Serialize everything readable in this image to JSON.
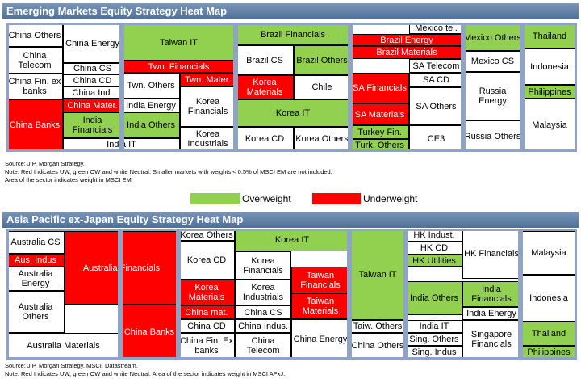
{
  "em": {
    "title": "Emerging Markets Equity Strategy Heat Map",
    "notes": [
      "Source: J.P. Morgan Strategy.",
      "Note: Red Indicates UW, green OW and white  Neutral. Smaller markets with weights < 0.5% of MSCI EM are not included.",
      "Area of the sector indicates weight in MSCI EM."
    ]
  },
  "legend": {
    "overweight": "Overweight",
    "underweight": "Underweight"
  },
  "ap": {
    "title": "Asia Pacific ex-Japan Equity Strategy Heat Map",
    "notes": [
      "Source: J.P. Morgan Strategy, MSCI, Datastream.",
      "Note: Red Indicates UW, green OW and white Neutral. Area of the sector indicates weight in MSCI APxJ."
    ]
  },
  "colors": {
    "overweight": "#92d050",
    "underweight": "#ff0000",
    "neutral": "#ffffff",
    "banner": "#5a7aa3",
    "frame": "#8fa4c4"
  },
  "chart_data": [
    {
      "type": "heatmap",
      "title": "Emerging Markets Equity Strategy Heat Map",
      "legend": [
        "Overweight",
        "Underweight"
      ],
      "cells": [
        {
          "label": "China Others",
          "rating": "neutral"
        },
        {
          "label": "China Telecom",
          "rating": "neutral"
        },
        {
          "label": "China Fin. ex banks",
          "rating": "neutral"
        },
        {
          "label": "China Banks",
          "rating": "underweight"
        },
        {
          "label": "China Energy",
          "rating": "neutral"
        },
        {
          "label": "China CS",
          "rating": "neutral"
        },
        {
          "label": "China CD",
          "rating": "neutral"
        },
        {
          "label": "China Ind.",
          "rating": "neutral"
        },
        {
          "label": "China Mater.",
          "rating": "underweight"
        },
        {
          "label": "India Financials",
          "rating": "overweight"
        },
        {
          "label": "India IT",
          "rating": "neutral"
        },
        {
          "label": "Taiwan IT",
          "rating": "overweight"
        },
        {
          "label": "Twn. Financials",
          "rating": "underweight"
        },
        {
          "label": "Twn. Others",
          "rating": "neutral"
        },
        {
          "label": "Twn. Mater.",
          "rating": "underweight"
        },
        {
          "label": "India Energy",
          "rating": "neutral"
        },
        {
          "label": "India Others",
          "rating": "overweight"
        },
        {
          "label": "Korea Financials",
          "rating": "neutral"
        },
        {
          "label": "Korea Industrials",
          "rating": "neutral"
        },
        {
          "label": "Brazil Financials",
          "rating": "overweight"
        },
        {
          "label": "Brazil CS",
          "rating": "neutral"
        },
        {
          "label": "Brazil Others",
          "rating": "overweight"
        },
        {
          "label": "Korea Materials",
          "rating": "underweight"
        },
        {
          "label": "Chile",
          "rating": "neutral"
        },
        {
          "label": "Korea IT",
          "rating": "overweight"
        },
        {
          "label": "Korea CD",
          "rating": "neutral"
        },
        {
          "label": "Korea Others",
          "rating": "neutral"
        },
        {
          "label": "Mexico tel.",
          "rating": "neutral"
        },
        {
          "label": "Brazil Energy",
          "rating": "underweight"
        },
        {
          "label": "Brazil Materials",
          "rating": "underweight"
        },
        {
          "label": "SA Telecom",
          "rating": "neutral"
        },
        {
          "label": "SA Financials",
          "rating": "underweight"
        },
        {
          "label": "SA CD",
          "rating": "neutral"
        },
        {
          "label": "SA Others",
          "rating": "neutral"
        },
        {
          "label": "SA Materials",
          "rating": "underweight"
        },
        {
          "label": "Turkey Fin.",
          "rating": "overweight"
        },
        {
          "label": "Turk. Others",
          "rating": "overweight"
        },
        {
          "label": "CE3",
          "rating": "neutral"
        },
        {
          "label": "Mexico Others",
          "rating": "overweight"
        },
        {
          "label": "Mexico CS",
          "rating": "neutral"
        },
        {
          "label": "Russia Energy",
          "rating": "neutral"
        },
        {
          "label": "Russia Others",
          "rating": "neutral"
        },
        {
          "label": "Thailand",
          "rating": "overweight"
        },
        {
          "label": "Indonesia",
          "rating": "neutral"
        },
        {
          "label": "Philippines",
          "rating": "overweight"
        },
        {
          "label": "Malaysia",
          "rating": "neutral"
        }
      ]
    },
    {
      "type": "heatmap",
      "title": "Asia Pacific ex-Japan Equity Strategy Heat Map",
      "cells": [
        {
          "label": "Australia CS",
          "rating": "neutral"
        },
        {
          "label": "Aus. Indus",
          "rating": "underweight"
        },
        {
          "label": "Australia Energy",
          "rating": "neutral"
        },
        {
          "label": "Australia Others",
          "rating": "neutral"
        },
        {
          "label": "Australia Materials",
          "rating": "neutral"
        },
        {
          "label": "Australia Financials",
          "rating": "underweight"
        },
        {
          "label": "China Banks",
          "rating": "underweight"
        },
        {
          "label": "Korea Others",
          "rating": "neutral"
        },
        {
          "label": "Korea CD",
          "rating": "neutral"
        },
        {
          "label": "Korea Materials",
          "rating": "underweight"
        },
        {
          "label": "Korea IT",
          "rating": "overweight"
        },
        {
          "label": "Korea Financials",
          "rating": "neutral"
        },
        {
          "label": "Korea Industrials",
          "rating": "neutral"
        },
        {
          "label": "Taiwan Financials",
          "rating": "underweight"
        },
        {
          "label": "Taiwan Materials",
          "rating": "underweight"
        },
        {
          "label": "China mat.",
          "rating": "underweight"
        },
        {
          "label": "China CS",
          "rating": "neutral"
        },
        {
          "label": "China CD",
          "rating": "neutral"
        },
        {
          "label": "China Indus.",
          "rating": "neutral"
        },
        {
          "label": "China Fin. Ex banks",
          "rating": "neutral"
        },
        {
          "label": "China Telecom",
          "rating": "neutral"
        },
        {
          "label": "China Energy",
          "rating": "neutral"
        },
        {
          "label": "Taiwan IT",
          "rating": "overweight"
        },
        {
          "label": "Taiw. Others",
          "rating": "neutral"
        },
        {
          "label": "China Others",
          "rating": "neutral"
        },
        {
          "label": "HK Indust.",
          "rating": "neutral"
        },
        {
          "label": "HK CD",
          "rating": "neutral"
        },
        {
          "label": "HK Utilities",
          "rating": "overweight"
        },
        {
          "label": "HK Financials",
          "rating": "neutral"
        },
        {
          "label": "India Others",
          "rating": "overweight"
        },
        {
          "label": "India Financials",
          "rating": "overweight"
        },
        {
          "label": "India Energy",
          "rating": "neutral"
        },
        {
          "label": "India IT",
          "rating": "neutral"
        },
        {
          "label": "Sing. Others",
          "rating": "neutral"
        },
        {
          "label": "Sing. Indus",
          "rating": "neutral"
        },
        {
          "label": "Singapore Financials",
          "rating": "neutral"
        },
        {
          "label": "Malaysia",
          "rating": "neutral"
        },
        {
          "label": "Indonesia",
          "rating": "neutral"
        },
        {
          "label": "Thailand",
          "rating": "overweight"
        },
        {
          "label": "Philippines",
          "rating": "overweight"
        }
      ]
    }
  ]
}
